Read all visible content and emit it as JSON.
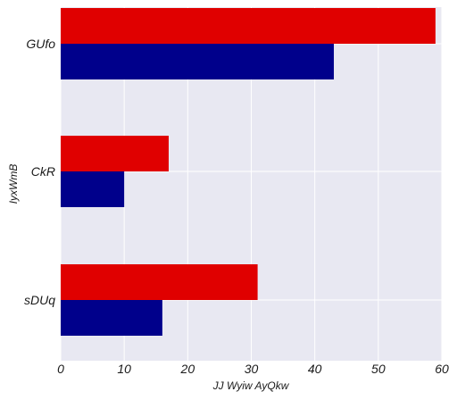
{
  "chart_data": {
    "type": "bar",
    "orientation": "horizontal",
    "categories": [
      "GUfo",
      "CkR",
      "sDUq"
    ],
    "series": [
      {
        "color": "#e00000",
        "values": [
          59,
          17,
          31
        ]
      },
      {
        "color": "#00008b",
        "values": [
          43,
          10,
          16
        ]
      }
    ],
    "xlabel": "JJ Wyiw AyQkw",
    "ylabel": "IyxWmB",
    "xlim": [
      0,
      60
    ],
    "xticks": [
      0,
      10,
      20,
      30,
      40,
      50,
      60
    ],
    "grid": true,
    "background": "#e8e8f2",
    "legend": "none"
  }
}
